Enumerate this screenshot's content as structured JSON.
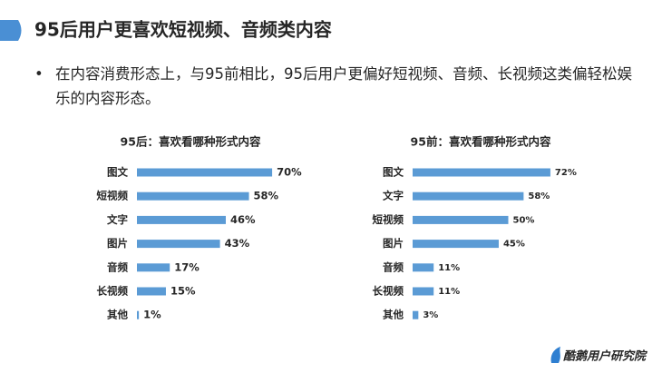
{
  "title": "95后用户更喜欢短视频、音频类内容",
  "bullet": "在内容消费形态上，与95前相比，95后用户更偏好短视频、音频、长视频这类偏轻松娱乐的内容形态。",
  "logo": "酷鹅用户研究院",
  "chart_data": [
    {
      "type": "bar",
      "title": "95后：喜欢看哪种形式内容",
      "color": "#5b9bd5",
      "categories": [
        "图文",
        "短视频",
        "文字",
        "图片",
        "音频",
        "长视频",
        "其他"
      ],
      "values": [
        70,
        58,
        46,
        43,
        17,
        15,
        1
      ],
      "value_labels": [
        "70%",
        "58%",
        "46%",
        "43%",
        "17%",
        "15%",
        "1%"
      ]
    },
    {
      "type": "bar",
      "title": "95前：喜欢看哪种形式内容",
      "color": "#5b9bd5",
      "categories": [
        "图文",
        "文字",
        "短视频",
        "图片",
        "音频",
        "长视频",
        "其他"
      ],
      "values": [
        72,
        58,
        50,
        45,
        11,
        11,
        3
      ],
      "value_labels": [
        "72%",
        "58%",
        "50%",
        "45%",
        "11%",
        "11%",
        "3%"
      ]
    }
  ]
}
